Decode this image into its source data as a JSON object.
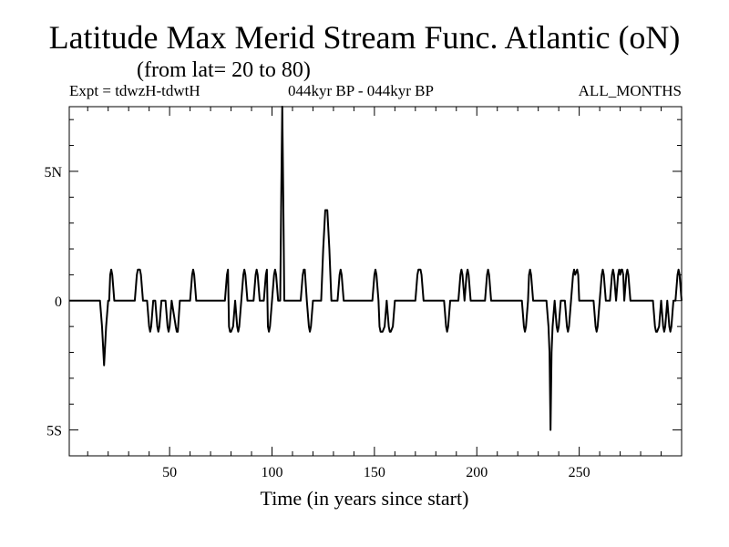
{
  "chart_data": {
    "type": "line",
    "title": "Latitude Max Merid Stream Func. Atlantic (oN)",
    "subtitle": "(from lat= 20 to 80)",
    "expt_label": "Expt = tdwzH-tdwtH",
    "period_label": "044kyr BP - 044kyr BP",
    "months_label": "ALL_MONTHS",
    "xlabel": "Time (in years since start)",
    "ylabel": "",
    "xlim": [
      1,
      300
    ],
    "ylim": [
      -6,
      7.5
    ],
    "x_ticks": [
      {
        "value": 50,
        "label": "50"
      },
      {
        "value": 100,
        "label": "100"
      },
      {
        "value": 150,
        "label": "150"
      },
      {
        "value": 200,
        "label": "200"
      },
      {
        "value": 250,
        "label": "250"
      }
    ],
    "y_ticks": [
      {
        "value": 5,
        "label": "5N"
      },
      {
        "value": 0,
        "label": "0"
      },
      {
        "value": -5,
        "label": "5S"
      }
    ],
    "series": [
      {
        "color": "#000000",
        "points": [
          [
            1,
            0
          ],
          [
            16,
            0
          ],
          [
            17,
            -1
          ],
          [
            18,
            -2.5
          ],
          [
            19,
            -1
          ],
          [
            20,
            0
          ],
          [
            20.5,
            0
          ],
          [
            21,
            1
          ],
          [
            21.5,
            1.2
          ],
          [
            22,
            1
          ],
          [
            23,
            0
          ],
          [
            33,
            0
          ],
          [
            34,
            1
          ],
          [
            34.5,
            1.2
          ],
          [
            35.5,
            1.2
          ],
          [
            36,
            1
          ],
          [
            37,
            0
          ],
          [
            39,
            0
          ],
          [
            40,
            -1
          ],
          [
            40.5,
            -1.2
          ],
          [
            41,
            -1
          ],
          [
            42,
            0
          ],
          [
            43,
            0
          ],
          [
            44,
            -1
          ],
          [
            44.5,
            -1.2
          ],
          [
            45,
            -1
          ],
          [
            46,
            0
          ],
          [
            48,
            0
          ],
          [
            49,
            -1
          ],
          [
            49.5,
            -1.2
          ],
          [
            50,
            -1
          ],
          [
            51,
            0
          ],
          [
            53,
            -1
          ],
          [
            53.5,
            -1.2
          ],
          [
            54,
            -1.2
          ],
          [
            55,
            0
          ],
          [
            60,
            0
          ],
          [
            61,
            1
          ],
          [
            61.5,
            1.2
          ],
          [
            62,
            1
          ],
          [
            63,
            0
          ],
          [
            77,
            0
          ],
          [
            78,
            1
          ],
          [
            78.5,
            1.2
          ],
          [
            79,
            -1
          ],
          [
            79.5,
            -1.2
          ],
          [
            80,
            -1.2
          ],
          [
            81,
            -1
          ],
          [
            82,
            0
          ],
          [
            83,
            -1
          ],
          [
            83.5,
            -1.2
          ],
          [
            84,
            -1
          ],
          [
            85,
            0
          ],
          [
            86,
            1
          ],
          [
            86.5,
            1.2
          ],
          [
            87,
            1
          ],
          [
            88,
            0
          ],
          [
            91,
            0
          ],
          [
            92,
            1
          ],
          [
            92.5,
            1.2
          ],
          [
            93,
            1
          ],
          [
            94,
            0
          ],
          [
            96,
            0
          ],
          [
            97,
            1
          ],
          [
            97.5,
            1.2
          ],
          [
            98,
            -1
          ],
          [
            98.5,
            -1.2
          ],
          [
            99,
            -1
          ],
          [
            100,
            0
          ],
          [
            101,
            1
          ],
          [
            101.5,
            1.2
          ],
          [
            102,
            1
          ],
          [
            103,
            0
          ],
          [
            104,
            0
          ],
          [
            104.5,
            4
          ],
          [
            105,
            7.5
          ],
          [
            105.5,
            4
          ],
          [
            106,
            0
          ],
          [
            114,
            0
          ],
          [
            115,
            1
          ],
          [
            115.5,
            1.2
          ],
          [
            116,
            1.2
          ],
          [
            117,
            0
          ],
          [
            118,
            -1
          ],
          [
            118.5,
            -1.2
          ],
          [
            119,
            -1
          ],
          [
            120,
            0
          ],
          [
            124,
            0
          ],
          [
            125,
            2
          ],
          [
            126,
            3.5
          ],
          [
            127,
            3.5
          ],
          [
            128,
            2
          ],
          [
            129,
            0
          ],
          [
            132,
            0
          ],
          [
            133,
            1
          ],
          [
            133.5,
            1.2
          ],
          [
            134,
            1
          ],
          [
            135,
            0
          ],
          [
            149,
            0
          ],
          [
            150,
            1
          ],
          [
            150.5,
            1.2
          ],
          [
            151,
            1
          ],
          [
            152,
            0
          ],
          [
            152.5,
            -1
          ],
          [
            153,
            -1.2
          ],
          [
            154,
            -1.2
          ],
          [
            155,
            -1
          ],
          [
            156,
            0
          ],
          [
            157,
            -1
          ],
          [
            157.5,
            -1.2
          ],
          [
            158,
            -1.2
          ],
          [
            159,
            -1
          ],
          [
            160,
            0
          ],
          [
            170,
            0
          ],
          [
            171,
            1
          ],
          [
            171.5,
            1.2
          ],
          [
            172.5,
            1.2
          ],
          [
            173,
            1
          ],
          [
            174,
            0
          ],
          [
            184,
            0
          ],
          [
            185,
            -1
          ],
          [
            185.5,
            -1.2
          ],
          [
            186,
            -1
          ],
          [
            187,
            0
          ],
          [
            191,
            0
          ],
          [
            192,
            1
          ],
          [
            192.5,
            1.2
          ],
          [
            193,
            1
          ],
          [
            194,
            0
          ],
          [
            195,
            1
          ],
          [
            195.5,
            1.2
          ],
          [
            196,
            1
          ],
          [
            197,
            0
          ],
          [
            204,
            0
          ],
          [
            205,
            1
          ],
          [
            205.5,
            1.2
          ],
          [
            206,
            1
          ],
          [
            207,
            0
          ],
          [
            222,
            0
          ],
          [
            223,
            -1
          ],
          [
            223.5,
            -1.2
          ],
          [
            224,
            -1
          ],
          [
            225,
            0
          ],
          [
            225.5,
            1
          ],
          [
            226,
            1.2
          ],
          [
            226.5,
            1
          ],
          [
            227.5,
            0
          ],
          [
            234,
            0
          ],
          [
            235,
            -1
          ],
          [
            235.5,
            -2
          ],
          [
            236,
            -5
          ],
          [
            236.5,
            -2
          ],
          [
            237,
            -1
          ],
          [
            238,
            0
          ],
          [
            239,
            -1
          ],
          [
            239.5,
            -1.2
          ],
          [
            240,
            -1
          ],
          [
            241,
            0
          ],
          [
            243,
            0
          ],
          [
            244,
            -1
          ],
          [
            244.5,
            -1.2
          ],
          [
            245,
            -1
          ],
          [
            246,
            0
          ],
          [
            247,
            1
          ],
          [
            247.5,
            1.2
          ],
          [
            248,
            1
          ],
          [
            249,
            1.2
          ],
          [
            249.5,
            1
          ],
          [
            250,
            0
          ],
          [
            257,
            0
          ],
          [
            258,
            -1
          ],
          [
            258.5,
            -1.2
          ],
          [
            259,
            -1
          ],
          [
            260,
            0
          ],
          [
            261,
            1
          ],
          [
            261.5,
            1.2
          ],
          [
            262,
            1
          ],
          [
            263,
            0
          ],
          [
            265,
            0
          ],
          [
            266,
            1
          ],
          [
            266.5,
            1.2
          ],
          [
            267,
            1
          ],
          [
            268,
            0
          ],
          [
            269,
            1
          ],
          [
            269.5,
            1.2
          ],
          [
            270,
            1
          ],
          [
            270.5,
            1.2
          ],
          [
            271,
            1.2
          ],
          [
            271.5,
            1
          ],
          [
            272,
            0
          ],
          [
            273,
            1
          ],
          [
            273.5,
            1.2
          ],
          [
            274,
            1
          ],
          [
            275,
            0
          ],
          [
            286,
            0
          ],
          [
            287,
            -1
          ],
          [
            287.5,
            -1.2
          ],
          [
            288,
            -1.2
          ],
          [
            289,
            -1
          ],
          [
            290,
            0
          ],
          [
            291,
            -1
          ],
          [
            291.5,
            -1.2
          ],
          [
            292,
            -1
          ],
          [
            293,
            0
          ],
          [
            294,
            -1
          ],
          [
            294.5,
            -1.2
          ],
          [
            295,
            -1
          ],
          [
            296,
            0
          ],
          [
            297,
            0
          ],
          [
            298,
            1
          ],
          [
            298.5,
            1.2
          ],
          [
            299,
            1
          ],
          [
            300,
            0
          ]
        ]
      }
    ]
  }
}
